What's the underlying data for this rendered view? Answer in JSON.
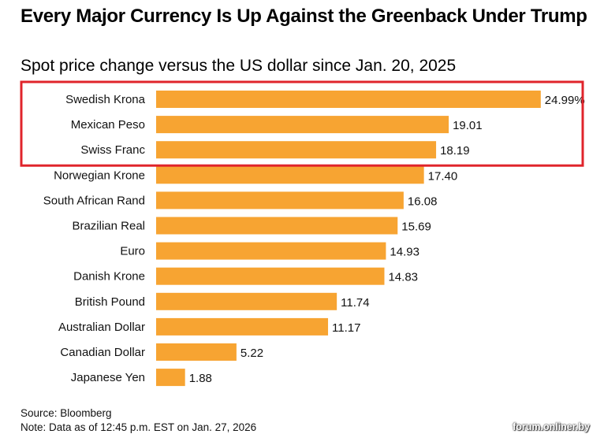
{
  "chart_data": {
    "type": "bar",
    "orientation": "horizontal",
    "title": "Every Major Currency Is Up Against the Greenback Under Trump",
    "subtitle": "Spot price change versus the US dollar since Jan. 20, 2025",
    "categories": [
      "Swedish Krona",
      "Mexican Peso",
      "Swiss Franc",
      "Norwegian Krone",
      "South African Rand",
      "Brazilian Real",
      "Euro",
      "Danish Krone",
      "British Pound",
      "Australian Dollar",
      "Canadian Dollar",
      "Japanese Yen"
    ],
    "values": [
      24.99,
      19.01,
      18.19,
      17.4,
      16.08,
      15.69,
      14.93,
      14.83,
      11.74,
      11.17,
      5.22,
      1.88
    ],
    "value_labels": [
      "24.99%",
      "19.01",
      "18.19",
      "17.40",
      "16.08",
      "15.69",
      "14.93",
      "14.83",
      "11.74",
      "11.17",
      "5.22",
      "1.88"
    ],
    "xlim": [
      0,
      25
    ],
    "xlabel": "",
    "ylabel": "",
    "grid": false,
    "bar_color": "#f7a432",
    "highlight": {
      "categories": [
        "Swedish Krona",
        "Mexican Peso",
        "Swiss Franc"
      ],
      "color": "#e0242b"
    },
    "source": "Source: Bloomberg",
    "note": "Note: Data as of 12:45 p.m. EST on Jan. 27, 2026"
  },
  "watermark": "forum.onliner.by"
}
